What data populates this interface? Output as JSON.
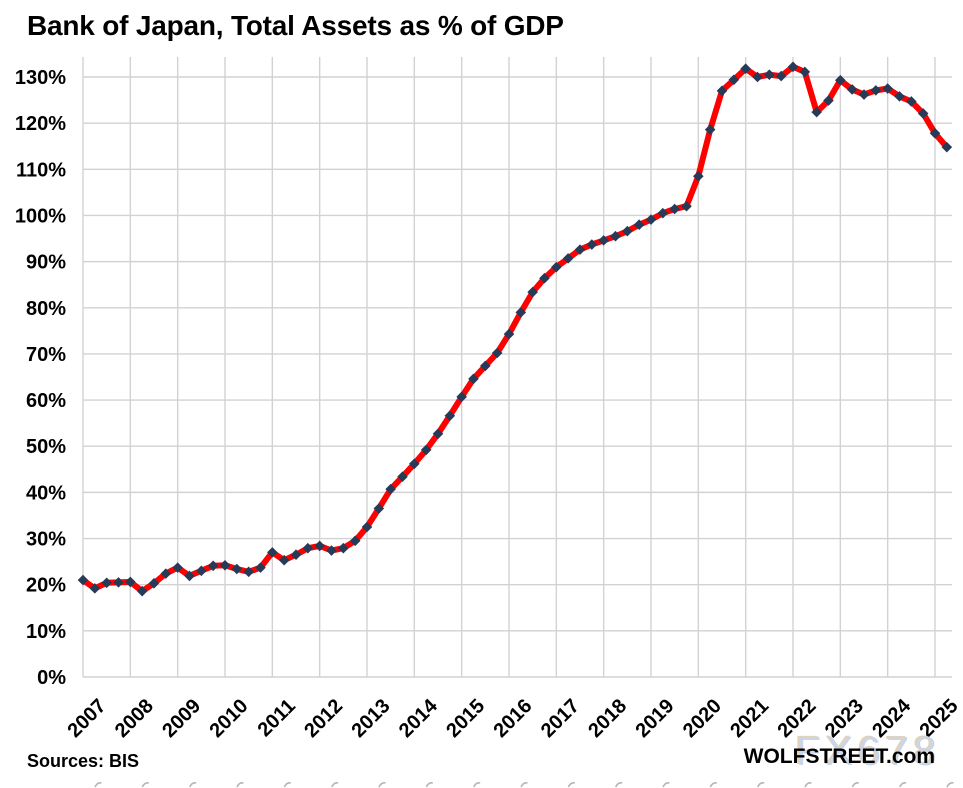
{
  "title": "Bank of Japan, Total Assets as % of GDP",
  "footer": {
    "sources": "Sources: BIS",
    "brand": "WOLFSTREET.com",
    "watermark": "FX678"
  },
  "colors": {
    "line": "#fe0000",
    "marker": "#273a58",
    "gridline": "#d2d2d2",
    "text": "#000000",
    "watermark": "#c9d6ea",
    "background": "#ffffff"
  },
  "chart_data": {
    "type": "line",
    "title": "Bank of Japan, Total Assets as % of GDP",
    "xlabel": "",
    "ylabel": "",
    "ylim": [
      0,
      130
    ],
    "grid": true,
    "legend": "none",
    "y_ticks": [
      "0%",
      "10%",
      "20%",
      "30%",
      "40%",
      "50%",
      "60%",
      "70%",
      "80%",
      "90%",
      "100%",
      "110%",
      "120%",
      "130%"
    ],
    "x_years": [
      "2007",
      "2008",
      "2009",
      "2010",
      "2011",
      "2012",
      "2013",
      "2014",
      "2015",
      "2016",
      "2017",
      "2018",
      "2019",
      "2020",
      "2021",
      "2022",
      "2023",
      "2024",
      "2025"
    ],
    "x_frequency": "quarterly",
    "x_start": "2007-Q1",
    "x_end": "2025-Q2",
    "series": [
      {
        "name": "BoJ total assets as % of GDP",
        "color": "#fe0000",
        "marker": "diamond",
        "marker_color": "#273a58",
        "values": [
          21.0,
          19.2,
          20.4,
          20.5,
          20.6,
          18.6,
          20.3,
          22.4,
          23.7,
          21.9,
          23.0,
          24.1,
          24.2,
          23.4,
          22.8,
          23.7,
          27.0,
          25.3,
          26.5,
          27.9,
          28.4,
          27.4,
          27.9,
          29.5,
          32.5,
          36.5,
          40.7,
          43.4,
          46.2,
          49.2,
          52.7,
          56.6,
          60.7,
          64.6,
          67.4,
          70.2,
          74.3,
          79.0,
          83.4,
          86.4,
          88.8,
          90.7,
          92.6,
          93.7,
          94.6,
          95.5,
          96.6,
          98.0,
          99.1,
          100.5,
          101.4,
          102.0,
          108.5,
          118.6,
          127.0,
          129.4,
          131.8,
          130.0,
          130.5,
          130.2,
          132.2,
          131.1,
          122.4,
          124.9,
          129.3,
          127.3,
          126.2,
          127.1,
          127.5,
          125.8,
          124.7,
          122.1,
          117.8,
          114.8
        ]
      }
    ]
  }
}
